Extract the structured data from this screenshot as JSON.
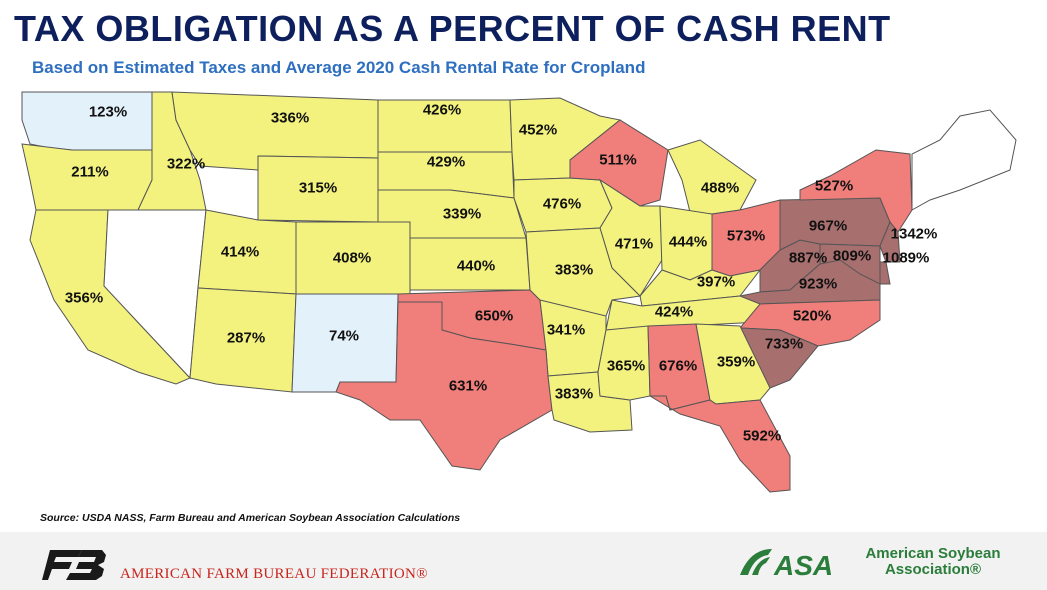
{
  "title": "TAX OBLIGATION AS A PERCENT OF CASH RENT",
  "subtitle": "Based on Estimated Taxes and Average 2020 Cash Rental Rate for Cropland",
  "source": "Source: USDA NASS, Farm Bureau and American Soybean Association Calculations",
  "colors": {
    "below_200": "#e3f1fb",
    "200_500": "#f3f27f",
    "500_700": "#f07e7a",
    "above_700": "#a86f6f",
    "no_data": "#ffffff",
    "title": "#0d1f5c",
    "subtitle": "#2e6fc0"
  },
  "states": {
    "WA": "123%",
    "OR": "211%",
    "ID": "322%",
    "MT": "336%",
    "WY": "315%",
    "ND": "426%",
    "SD": "429%",
    "MN": "452%",
    "NE": "339%",
    "IA": "476%",
    "WI": "511%",
    "MI": "488%",
    "NY": "527%",
    "PA": "967%",
    "NJ": "1342%",
    "DE": "1089%",
    "MD": "809%",
    "OH": "573%",
    "WV": "887%",
    "VA": "923%",
    "IN": "444%",
    "IL": "471%",
    "KY": "397%",
    "TN": "424%",
    "NC": "520%",
    "SC": "733%",
    "CA": "356%",
    "UT": "414%",
    "CO": "408%",
    "KS": "440%",
    "MO": "383%",
    "AZ": "287%",
    "NM": "74%",
    "OK": "650%",
    "AR": "341%",
    "TX": "631%",
    "LA": "383%",
    "MS": "365%",
    "AL": "676%",
    "GA": "359%",
    "FL": "592%"
  },
  "footer": {
    "afbf_name": "AMERICAN FARM BUREAU FEDERATION®",
    "asa_line1": "American Soybean",
    "asa_line2": "Association®",
    "asa_abbr": "ASA"
  }
}
